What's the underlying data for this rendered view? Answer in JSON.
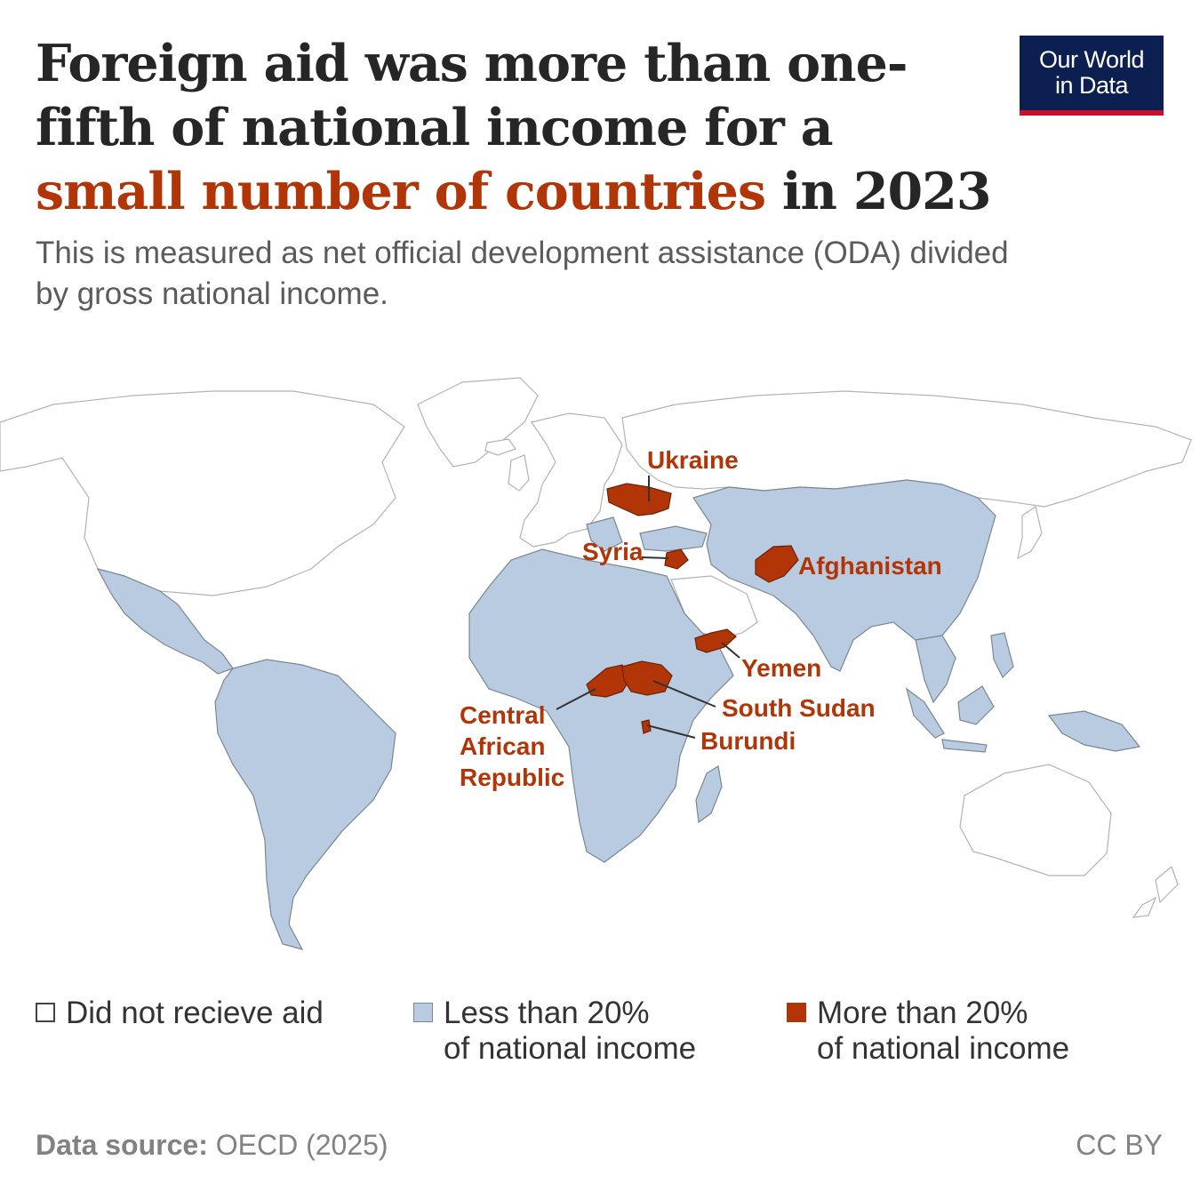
{
  "title": {
    "part1": "Foreign aid was more than one-fifth of national income for a ",
    "highlight": "small number of countries",
    "part2": " in 2023"
  },
  "subtitle": "This is measured as net official development assistance (ODA) divided by gross national income.",
  "logo": {
    "line1": "Our World",
    "line2": "in Data"
  },
  "colors": {
    "no_aid": "#ffffff",
    "below_20": "#b8cbe0",
    "above_20": "#b13507",
    "title_text": "#262626"
  },
  "map": {
    "labels": {
      "ukraine": "Ukraine",
      "syria": "Syria",
      "afghanistan": "Afghanistan",
      "yemen": "Yemen",
      "south_sudan": "South Sudan",
      "burundi": "Burundi",
      "car_line1": "Central",
      "car_line2": "African",
      "car_line3": "Republic"
    }
  },
  "legend": {
    "none": "Did not recieve aid",
    "low_line1": "Less than 20%",
    "low_line2": "of national income",
    "high_line1": "More than 20%",
    "high_line2": "of national income"
  },
  "footer": {
    "source_label": "Data source:",
    "source_value": "OECD (2025)",
    "license": "CC BY"
  }
}
